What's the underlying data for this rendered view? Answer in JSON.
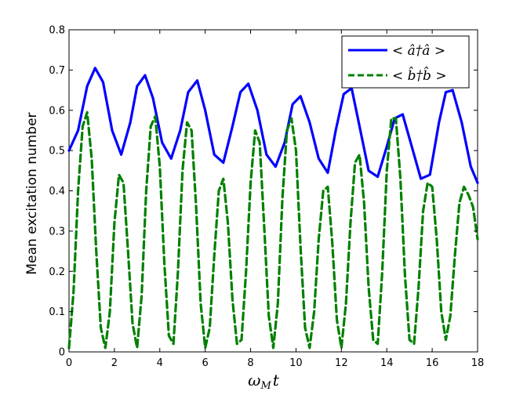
{
  "chart_data": {
    "type": "line",
    "title": "",
    "xlabel": "ω",
    "xlabel_sub": "M",
    "xlabel_tail": "t",
    "ylabel": "Mean excitation number",
    "xlim": [
      0,
      18
    ],
    "ylim": [
      0,
      0.8
    ],
    "xticks": [
      0,
      2,
      4,
      6,
      8,
      10,
      12,
      14,
      16,
      18
    ],
    "yticks": [
      0,
      0.1,
      0.2,
      0.3,
      0.4,
      0.5,
      0.6,
      0.7,
      0.8
    ],
    "xtick_labels": [
      "0",
      "2",
      "4",
      "6",
      "8",
      "10",
      "12",
      "14",
      "16",
      "18"
    ],
    "ytick_labels": [
      "0",
      "0.1",
      "0.2",
      "0.3",
      "0.4",
      "0.5",
      "0.6",
      "0.7",
      "0.8"
    ],
    "grid": false,
    "legend_position": "top-right",
    "series": [
      {
        "name": "< â†â >",
        "color": "#0000ff",
        "style": "solid",
        "x": [
          0,
          0.4,
          0.8,
          1.15,
          1.5,
          1.9,
          2.3,
          2.7,
          3.0,
          3.35,
          3.7,
          4.1,
          4.5,
          4.9,
          5.25,
          5.65,
          6.0,
          6.4,
          6.8,
          7.2,
          7.55,
          7.9,
          8.3,
          8.7,
          9.1,
          9.5,
          9.85,
          10.2,
          10.6,
          11.0,
          11.4,
          11.75,
          12.1,
          12.45,
          12.8,
          13.2,
          13.6,
          14.0,
          14.35,
          14.7,
          15.1,
          15.5,
          15.9,
          16.3,
          16.6,
          16.9,
          17.3,
          17.7,
          18.0
        ],
        "y": [
          0.5,
          0.55,
          0.66,
          0.705,
          0.67,
          0.55,
          0.49,
          0.57,
          0.66,
          0.687,
          0.63,
          0.52,
          0.48,
          0.55,
          0.645,
          0.674,
          0.6,
          0.49,
          0.47,
          0.56,
          0.645,
          0.666,
          0.6,
          0.49,
          0.46,
          0.52,
          0.615,
          0.635,
          0.57,
          0.48,
          0.445,
          0.55,
          0.64,
          0.655,
          0.56,
          0.45,
          0.435,
          0.51,
          0.58,
          0.59,
          0.51,
          0.43,
          0.44,
          0.57,
          0.645,
          0.65,
          0.57,
          0.46,
          0.42
        ]
      },
      {
        "name": "< b̂†b̂ >",
        "color": "#008000",
        "style": "dashed",
        "x": [
          0,
          0.2,
          0.4,
          0.6,
          0.8,
          1.0,
          1.2,
          1.4,
          1.6,
          1.8,
          2.0,
          2.2,
          2.4,
          2.6,
          2.8,
          3.0,
          3.2,
          3.4,
          3.6,
          3.8,
          4.0,
          4.2,
          4.4,
          4.6,
          4.8,
          5.0,
          5.2,
          5.4,
          5.6,
          5.8,
          6.0,
          6.2,
          6.4,
          6.6,
          6.8,
          7.0,
          7.2,
          7.4,
          7.6,
          7.8,
          8.0,
          8.2,
          8.4,
          8.6,
          8.8,
          9.0,
          9.2,
          9.4,
          9.6,
          9.8,
          10.0,
          10.2,
          10.4,
          10.6,
          10.8,
          11.0,
          11.2,
          11.4,
          11.6,
          11.8,
          12.0,
          12.2,
          12.4,
          12.6,
          12.8,
          13.0,
          13.2,
          13.4,
          13.6,
          13.8,
          14.0,
          14.2,
          14.4,
          14.6,
          14.8,
          15.0,
          15.2,
          15.4,
          15.6,
          15.8,
          16.0,
          16.2,
          16.4,
          16.6,
          16.8,
          17.0,
          17.2,
          17.4,
          17.6,
          17.8,
          18.0
        ],
        "y": [
          0.01,
          0.15,
          0.4,
          0.56,
          0.595,
          0.48,
          0.25,
          0.06,
          0.01,
          0.1,
          0.32,
          0.44,
          0.42,
          0.25,
          0.07,
          0.01,
          0.14,
          0.4,
          0.56,
          0.585,
          0.46,
          0.22,
          0.04,
          0.02,
          0.2,
          0.45,
          0.57,
          0.55,
          0.36,
          0.12,
          0.01,
          0.06,
          0.24,
          0.4,
          0.43,
          0.32,
          0.13,
          0.02,
          0.03,
          0.2,
          0.42,
          0.55,
          0.52,
          0.31,
          0.09,
          0.01,
          0.12,
          0.38,
          0.55,
          0.58,
          0.5,
          0.26,
          0.06,
          0.01,
          0.1,
          0.28,
          0.4,
          0.41,
          0.27,
          0.08,
          0.01,
          0.12,
          0.32,
          0.47,
          0.49,
          0.37,
          0.16,
          0.03,
          0.02,
          0.2,
          0.45,
          0.58,
          0.58,
          0.43,
          0.19,
          0.03,
          0.02,
          0.16,
          0.35,
          0.42,
          0.41,
          0.28,
          0.1,
          0.03,
          0.09,
          0.24,
          0.37,
          0.41,
          0.39,
          0.36,
          0.28
        ]
      }
    ]
  }
}
